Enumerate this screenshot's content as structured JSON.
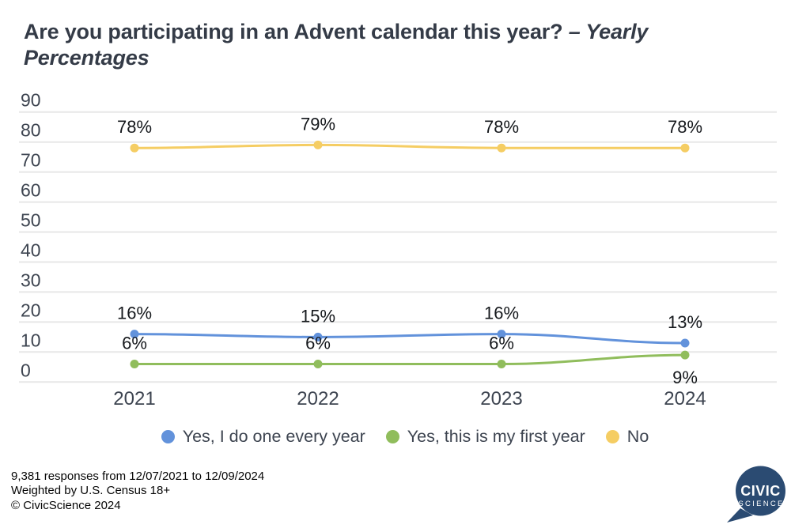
{
  "title": {
    "main": "Are you participating in an Advent calendar this year?",
    "emphasis": "– Yearly Percentages"
  },
  "chart_data": {
    "type": "line",
    "title": "Are you participating in an Advent calendar this year? – Yearly Percentages",
    "categories": [
      "2021",
      "2022",
      "2023",
      "2024"
    ],
    "series": [
      {
        "name": "Yes, I do one every year",
        "color": "#6292DB",
        "values": [
          16,
          15,
          16,
          13
        ],
        "labels": [
          "16%",
          "15%",
          "16%",
          "13%"
        ],
        "label_positions": [
          "above",
          "above",
          "above",
          "above"
        ]
      },
      {
        "name": "Yes, this is my first year",
        "color": "#90BD5C",
        "values": [
          6,
          6,
          6,
          9
        ],
        "labels": [
          "6%",
          "6%",
          "6%",
          "9%"
        ],
        "label_positions": [
          "above",
          "above",
          "above",
          "below"
        ]
      },
      {
        "name": "No",
        "color": "#F5CD63",
        "values": [
          78,
          79,
          78,
          78
        ],
        "labels": [
          "78%",
          "79%",
          "78%",
          "78%"
        ],
        "label_positions": [
          "above",
          "above",
          "above",
          "above"
        ]
      }
    ],
    "yticks": [
      90,
      80,
      70,
      60,
      50,
      40,
      30,
      20,
      10,
      0
    ],
    "ylim": [
      0,
      90
    ],
    "grid": true,
    "legend_position": "bottom",
    "colors": {
      "gridline": "#E7E7E7",
      "axis_text": "#3D4450",
      "data_label_text": "#15181C"
    }
  },
  "footer": {
    "line1": "9,381 responses from 12/07/2021 to 12/09/2024",
    "line2": "Weighted by U.S. Census 18+",
    "line3": "© CivicScience 2024"
  },
  "logo": {
    "line1": "CIVIC",
    "line2": "SCIENCE",
    "color": "#2B4B72"
  }
}
